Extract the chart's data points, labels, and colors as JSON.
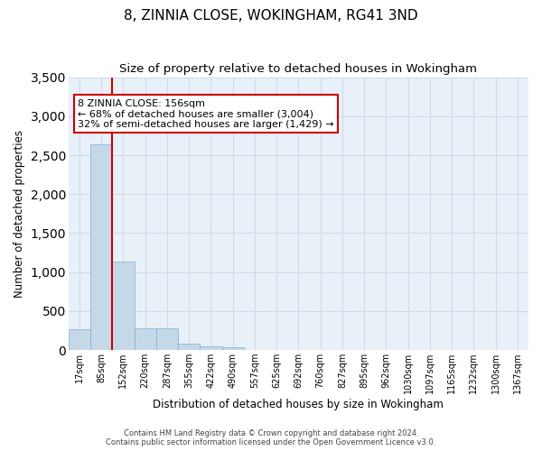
{
  "title": "8, ZINNIA CLOSE, WOKINGHAM, RG41 3ND",
  "subtitle": "Size of property relative to detached houses in Wokingham",
  "xlabel": "Distribution of detached houses by size in Wokingham",
  "ylabel": "Number of detached properties",
  "footer_line1": "Contains HM Land Registry data © Crown copyright and database right 2024.",
  "footer_line2": "Contains public sector information licensed under the Open Government Licence v3.0.",
  "bar_labels": [
    "17sqm",
    "85sqm",
    "152sqm",
    "220sqm",
    "287sqm",
    "355sqm",
    "422sqm",
    "490sqm",
    "557sqm",
    "625sqm",
    "692sqm",
    "760sqm",
    "827sqm",
    "895sqm",
    "962sqm",
    "1030sqm",
    "1097sqm",
    "1165sqm",
    "1232sqm",
    "1300sqm",
    "1367sqm"
  ],
  "bar_values": [
    270,
    2640,
    1140,
    280,
    280,
    80,
    50,
    35,
    0,
    0,
    0,
    0,
    0,
    0,
    0,
    0,
    0,
    0,
    0,
    0,
    0
  ],
  "bar_color": "#c5d8e8",
  "bar_edge_color": "#7bafd4",
  "grid_color": "#d0d8e8",
  "background_color": "#e8f0f8",
  "ylim": [
    0,
    3500
  ],
  "yticks": [
    0,
    500,
    1000,
    1500,
    2000,
    2500,
    3000,
    3500
  ],
  "annotation_line1": "8 ZINNIA CLOSE: 156sqm",
  "annotation_line2": "← 68% of detached houses are smaller (3,004)",
  "annotation_line3": "32% of semi-detached houses are larger (1,429) →",
  "annotation_box_color": "#ffffff",
  "annotation_box_edge": "#cc0000",
  "marker_color": "#cc0000",
  "title_fontsize": 11,
  "subtitle_fontsize": 9.5,
  "tick_fontsize": 7,
  "axis_label_fontsize": 8.5,
  "annotation_fontsize": 8,
  "footer_fontsize": 6
}
